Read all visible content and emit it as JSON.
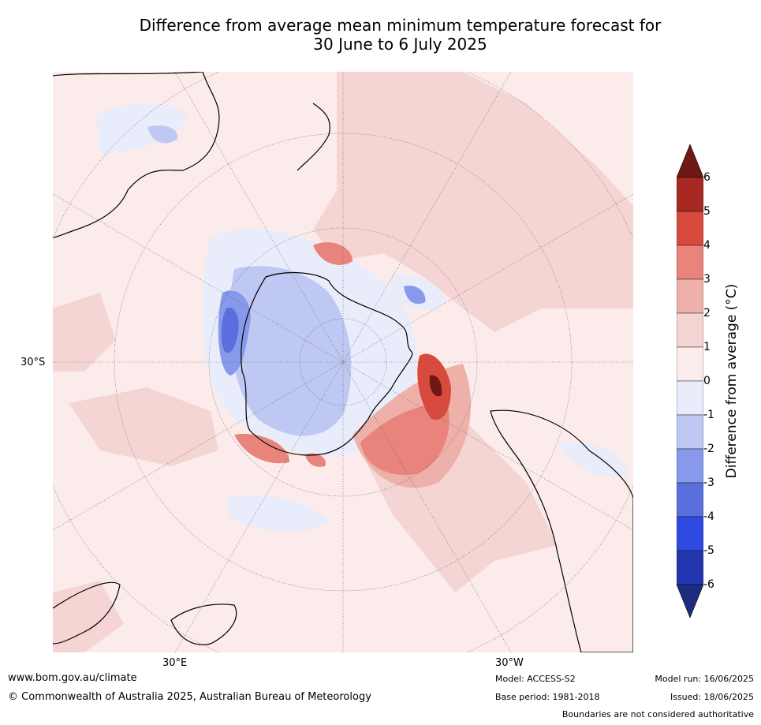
{
  "title_line1": "Difference from average mean minimum temperature forecast for",
  "title_line2": "30 June to 6 July 2025",
  "labels": {
    "lat_30s": "30°S",
    "lon_30e": "30°E",
    "lon_30w": "30°W"
  },
  "colorbar": {
    "title": "Difference from average (°C)",
    "ticks": [
      "6",
      "5",
      "4",
      "3",
      "2",
      "1",
      "0",
      "-1",
      "-2",
      "-3",
      "-4",
      "-5",
      "-6"
    ],
    "colors": [
      "#6e1914",
      "#a82823",
      "#d94a3e",
      "#e8847b",
      "#eeb1aa",
      "#f5d5d3",
      "#fbebea",
      "#e8ecfb",
      "#bfc8f2",
      "#8799ea",
      "#5a6fdd",
      "#2f4ae0",
      "#2336b0",
      "#1d2c7e"
    ]
  },
  "footer": {
    "url": "www.bom.gov.au/climate",
    "copyright": "© Commonwealth of Australia 2025, Australian Bureau of Meteorology",
    "model": "Model: ACCESS-S2",
    "base_period": "Base period: 1981-2018",
    "model_run": "Model run: 16/06/2025",
    "issued": "Issued: 18/06/2025",
    "disclaimer": "Boundaries are not considered authoritative"
  }
}
